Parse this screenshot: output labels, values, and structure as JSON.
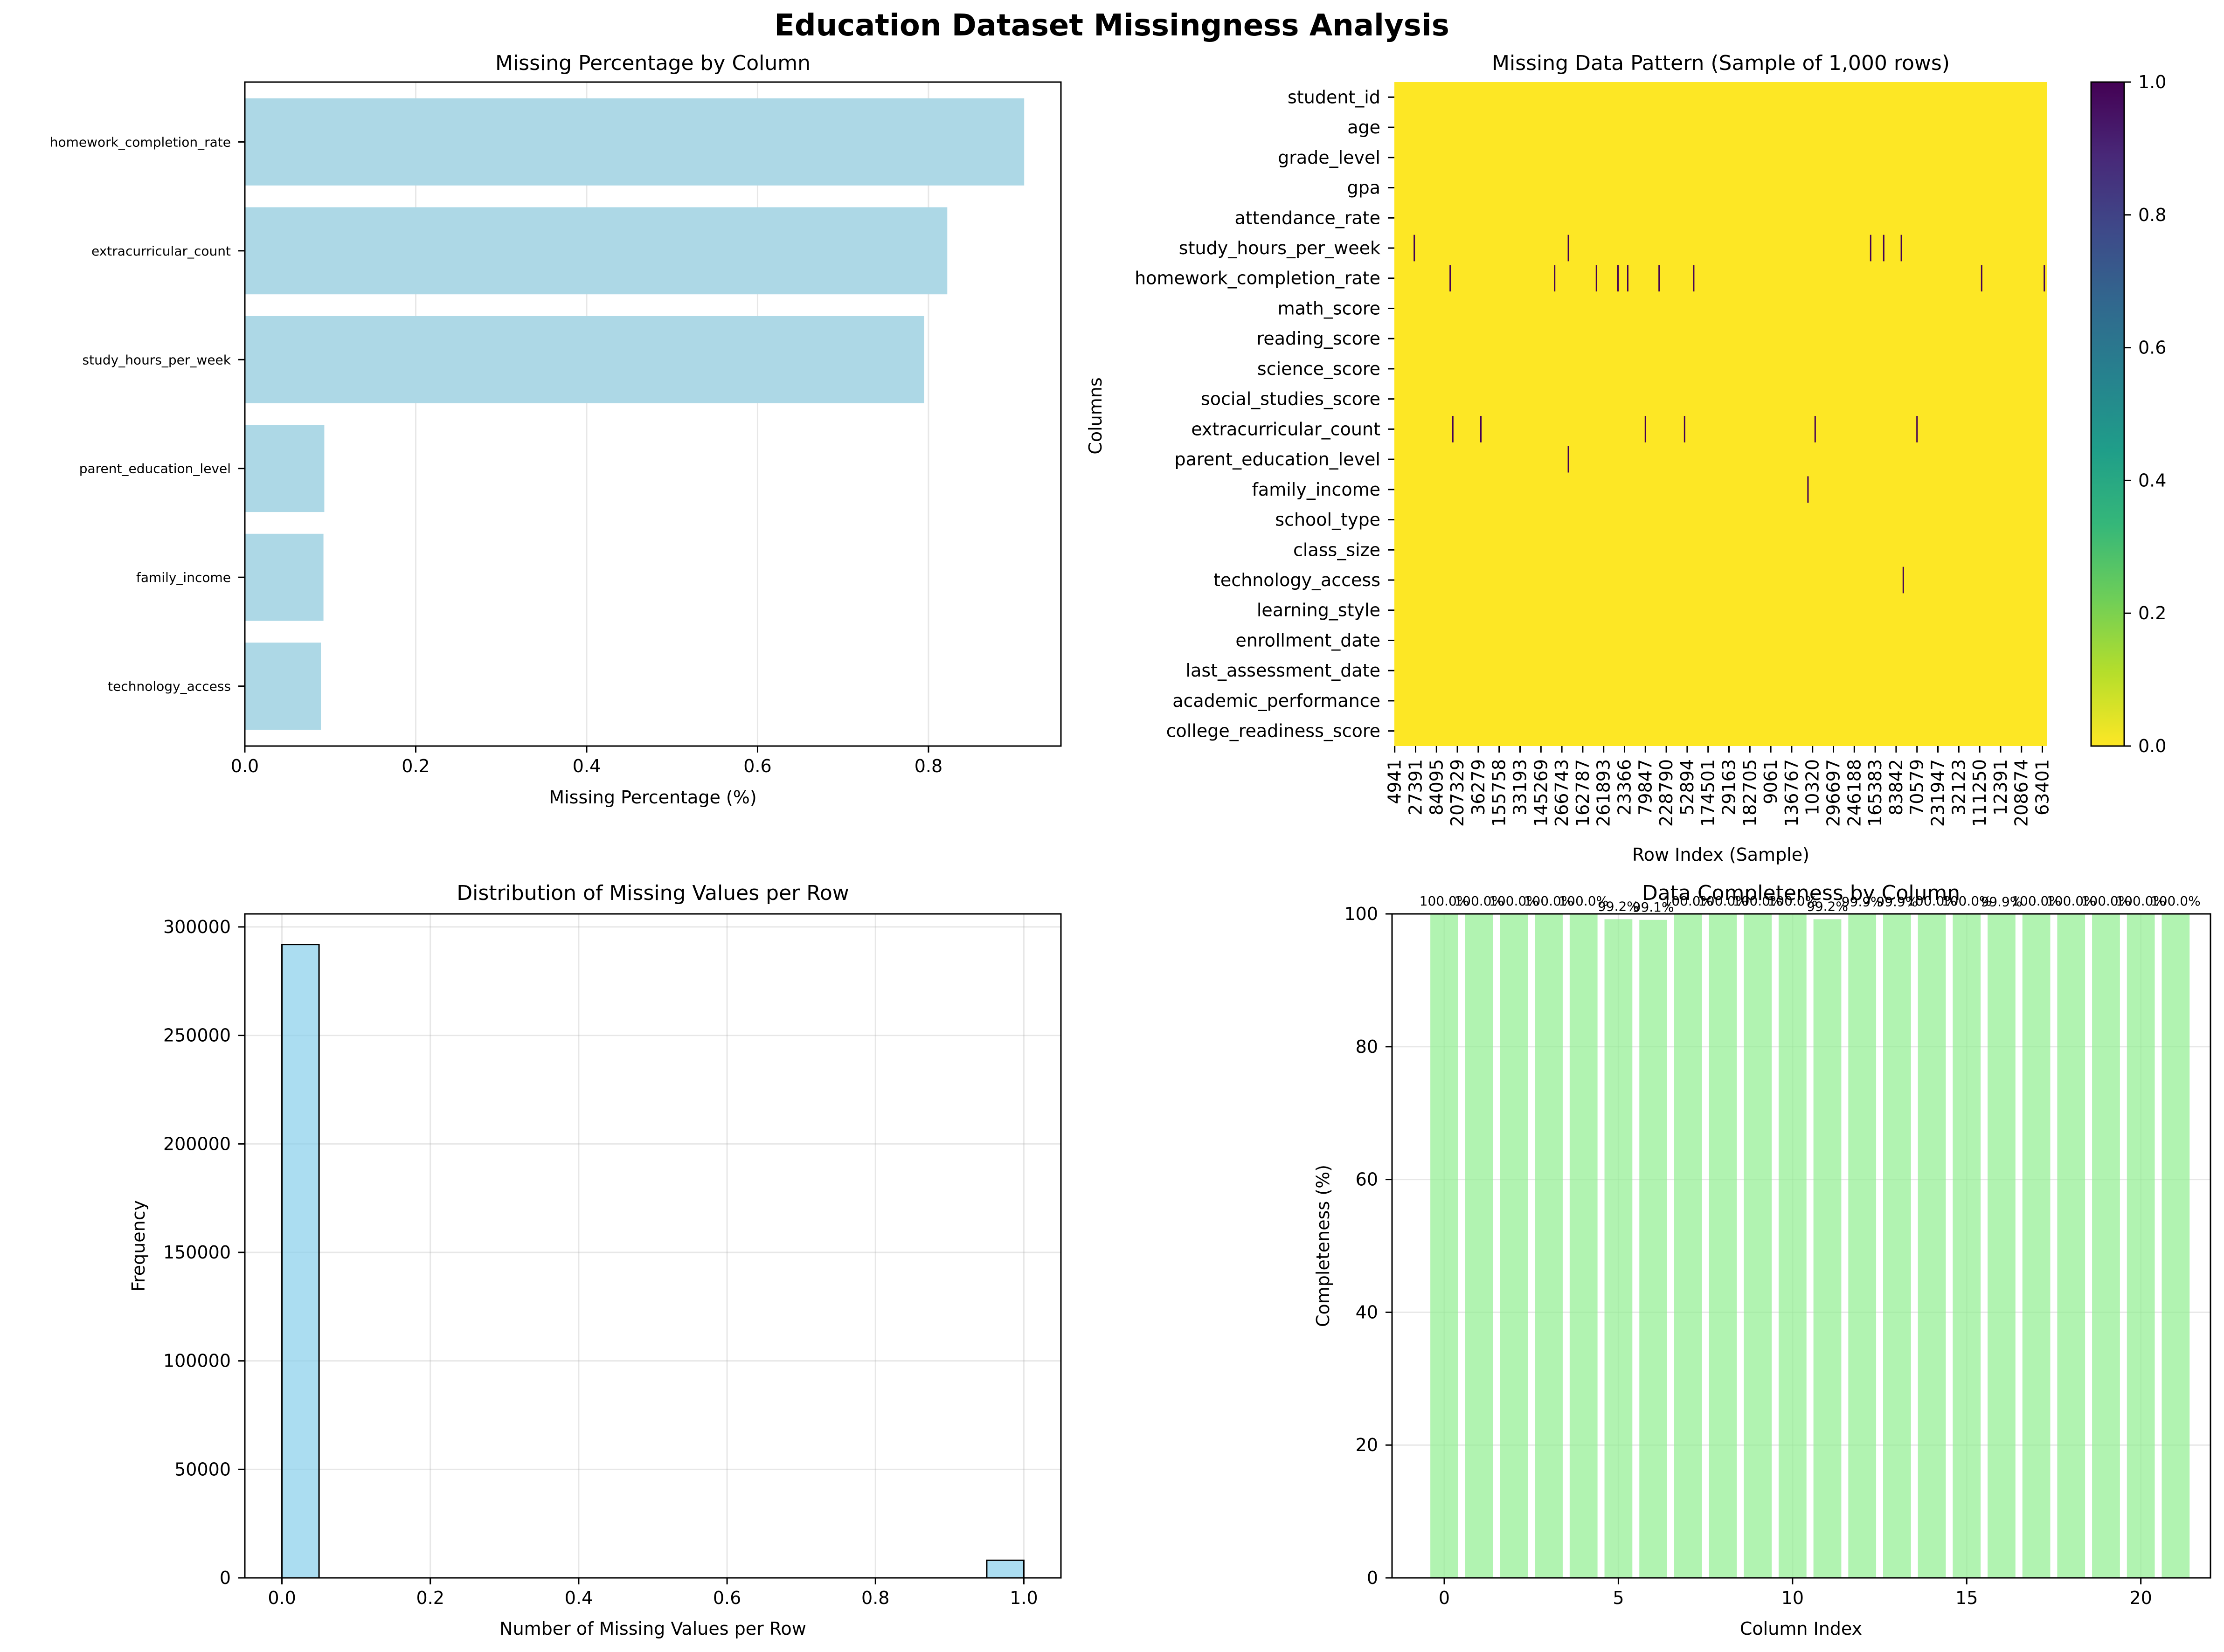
{
  "figure": {
    "title": "Education Dataset Missingness Analysis"
  },
  "colors": {
    "hbar": "#add8e6",
    "hist": "#87ceeb",
    "hist_edge": "#000000",
    "completeness": "#90ee90",
    "heat_zero": "#fde725",
    "heat_one": "#440154",
    "viridis": [
      "#fde725",
      "#b5de2b",
      "#6ece58",
      "#35b779",
      "#1f9e89",
      "#26828e",
      "#31688e",
      "#3e4989",
      "#482878",
      "#440154"
    ]
  },
  "chart_data": [
    {
      "id": "missing_pct",
      "type": "bar",
      "orientation": "horizontal",
      "title": "Missing Percentage by Column",
      "xlabel": "Missing Percentage (%)",
      "ylabel": "",
      "categories": [
        "homework_completion_rate",
        "extracurricular_count",
        "study_hours_per_week",
        "parent_education_level",
        "family_income",
        "technology_access"
      ],
      "values": [
        0.912,
        0.822,
        0.795,
        0.093,
        0.092,
        0.089
      ],
      "xlim": [
        0,
        0.955
      ],
      "xticks": [
        0.0,
        0.2,
        0.4,
        0.6,
        0.8
      ],
      "xtick_labels": [
        "0.0",
        "0.2",
        "0.4",
        "0.6",
        "0.8"
      ],
      "grid": true
    },
    {
      "id": "missing_pattern",
      "type": "heatmap",
      "title": "Missing Data Pattern (Sample of 1,000 rows)",
      "xlabel": "Row Index (Sample)",
      "ylabel": "Columns",
      "rows": [
        "student_id",
        "age",
        "grade_level",
        "gpa",
        "attendance_rate",
        "study_hours_per_week",
        "homework_completion_rate",
        "math_score",
        "reading_score",
        "science_score",
        "social_studies_score",
        "extracurricular_count",
        "parent_education_level",
        "family_income",
        "school_type",
        "class_size",
        "technology_access",
        "learning_style",
        "enrollment_date",
        "last_assessment_date",
        "academic_performance",
        "college_readiness_score"
      ],
      "x_tick_labels": [
        "4941",
        "27391",
        "84095",
        "207329",
        "36279",
        "155758",
        "33193",
        "145269",
        "266743",
        "162787",
        "261893",
        "23366",
        "79847",
        "228790",
        "52894",
        "174501",
        "29163",
        "182705",
        "9061",
        "136767",
        "10320",
        "296697",
        "246188",
        "165383",
        "83842",
        "70579",
        "231947",
        "32123",
        "111250",
        "12391",
        "208674",
        "63401"
      ],
      "sample_size": 1000,
      "missing_cells": [
        {
          "column": "study_hours_per_week",
          "sample_positions": [
            30,
            266,
            729,
            749,
            776
          ]
        },
        {
          "column": "homework_completion_rate",
          "sample_positions": [
            85,
            245,
            309,
            342,
            357,
            405,
            458,
            899,
            995
          ]
        },
        {
          "column": "extracurricular_count",
          "sample_positions": [
            89,
            132,
            384,
            444,
            644,
            800
          ]
        },
        {
          "column": "parent_education_level",
          "sample_positions": [
            266
          ]
        },
        {
          "column": "family_income",
          "sample_positions": [
            633
          ]
        },
        {
          "column": "technology_access",
          "sample_positions": [
            779
          ]
        }
      ],
      "colorbar": {
        "min": 0.0,
        "max": 1.0,
        "ticks": [
          "0.0",
          "0.2",
          "0.4",
          "0.6",
          "0.8",
          "1.0"
        ]
      }
    },
    {
      "id": "missing_per_row",
      "type": "bar",
      "subtype": "histogram",
      "title": "Distribution of Missing Values per Row",
      "xlabel": "Number of Missing Values per Row",
      "ylabel": "Frequency",
      "bins": [
        {
          "start": 0.0,
          "end": 0.05,
          "count": 291900
        },
        {
          "start": 0.95,
          "end": 1.0,
          "count": 8100
        }
      ],
      "xlim": [
        -0.05,
        1.05
      ],
      "ylim": [
        0,
        306000
      ],
      "xticks": [
        0.0,
        0.2,
        0.4,
        0.6,
        0.8,
        1.0
      ],
      "xtick_labels": [
        "0.0",
        "0.2",
        "0.4",
        "0.6",
        "0.8",
        "1.0"
      ],
      "yticks": [
        0,
        50000,
        100000,
        150000,
        200000,
        250000,
        300000
      ],
      "ytick_labels": [
        "0",
        "50000",
        "100000",
        "150000",
        "200000",
        "250000",
        "300000"
      ],
      "grid": true
    },
    {
      "id": "completeness",
      "type": "bar",
      "title": "Data Completeness by Column",
      "xlabel": "Column Index",
      "ylabel": "Completeness (%)",
      "categories": [
        0,
        1,
        2,
        3,
        4,
        5,
        6,
        7,
        8,
        9,
        10,
        11,
        12,
        13,
        14,
        15,
        16,
        17,
        18,
        19,
        20,
        21
      ],
      "values": [
        100.0,
        100.0,
        100.0,
        100.0,
        100.0,
        99.2,
        99.1,
        100.0,
        100.0,
        100.0,
        100.0,
        99.2,
        99.9,
        99.9,
        100.0,
        100.0,
        99.9,
        100.0,
        100.0,
        100.0,
        100.0,
        100.0
      ],
      "bar_labels": [
        "100.0%",
        "100.0%",
        "100.0%",
        "100.0%",
        "100.0%",
        "99.2%",
        "99.1%",
        "100.0%",
        "100.0%",
        "100.0%",
        "100.0%",
        "99.2%",
        "99.9%",
        "99.9%",
        "100.0%",
        "100.0%",
        "99.9%",
        "100.0%",
        "100.0%",
        "100.0%",
        "100.0%",
        "100.0%"
      ],
      "xlim": [
        -1.5,
        22.0
      ],
      "ylim": [
        0,
        100
      ],
      "xticks": [
        0,
        5,
        10,
        15,
        20
      ],
      "xtick_labels": [
        "0",
        "5",
        "10",
        "15",
        "20"
      ],
      "yticks": [
        0,
        20,
        40,
        60,
        80,
        100
      ],
      "ytick_labels": [
        "0",
        "20",
        "40",
        "60",
        "80",
        "100"
      ],
      "grid": true
    }
  ]
}
